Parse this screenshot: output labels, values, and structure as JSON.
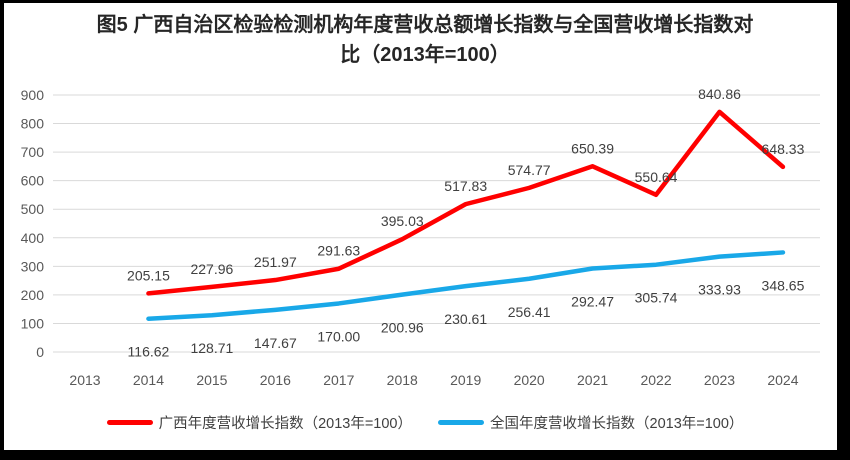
{
  "figure": {
    "title_line1": "图5  广西自治区检验检测机构年度营收总额增长指数与全国营收增长指数对",
    "title_line2": "比（2013年=100）"
  },
  "chart_data": {
    "type": "line",
    "title": "图5 广西自治区检验检测机构年度营收总额增长指数与全国营收增长指数对比（2013年=100）",
    "categories": [
      "2013",
      "2014",
      "2015",
      "2016",
      "2017",
      "2018",
      "2019",
      "2020",
      "2021",
      "2022",
      "2023",
      "2024"
    ],
    "series": [
      {
        "name": "广西年度营收增长指数（2013年=100）",
        "color": "#FF0000",
        "label_position": "above",
        "values": [
          null,
          205.15,
          227.96,
          251.97,
          291.63,
          395.03,
          517.83,
          574.77,
          650.39,
          550.64,
          840.86,
          648.33
        ]
      },
      {
        "name": "全国年度营收增长指数（2013年=100）",
        "color": "#19A8E8",
        "label_position": "below",
        "values": [
          null,
          116.62,
          128.71,
          147.67,
          170.0,
          200.96,
          230.61,
          256.41,
          292.47,
          305.74,
          333.93,
          348.65
        ]
      }
    ],
    "ylim": [
      0,
      900
    ],
    "ytick_step": 100,
    "yticks": [
      0,
      100,
      200,
      300,
      400,
      500,
      600,
      700,
      800,
      900
    ],
    "label_decimals": 2,
    "grid": "horizontal-only",
    "legend_position": "bottom",
    "colors": {
      "grid": "#D9D9D9",
      "axis_ticks": "#595959",
      "data_labels": "#404040",
      "title": "#262626",
      "frame_border": "#000000"
    }
  }
}
